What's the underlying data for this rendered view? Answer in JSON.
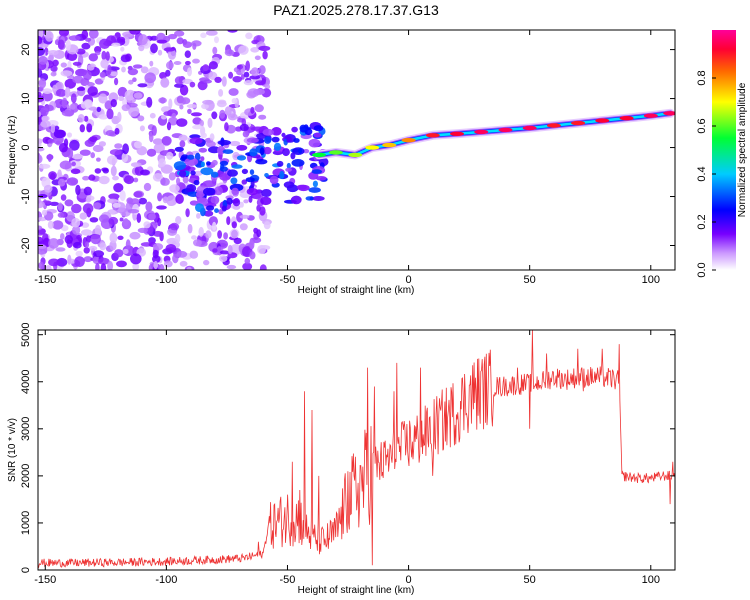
{
  "title": "PAZ1.2025.278.17.37.G13",
  "colors": {
    "snr_line": "#ee3333",
    "axis": "#000000",
    "background": "#ffffff"
  },
  "chart_data": [
    {
      "type": "heatmap",
      "name": "spectrogram",
      "xlabel": "Height of straight line (km)",
      "ylabel": "Frequency (Hz)",
      "xlim": [
        -153,
        110
      ],
      "ylim": [
        -25,
        24
      ],
      "x_ticks": [
        -150,
        -100,
        -50,
        0,
        50,
        100
      ],
      "y_ticks": [
        20,
        10,
        0,
        -10,
        -20
      ],
      "colorbar": {
        "label": "Normalized spectral amplitude",
        "range": [
          0,
          1
        ],
        "ticks": [
          0.0,
          0.2,
          0.4,
          0.6,
          0.8
        ],
        "colormap": [
          "#ffffff",
          "#cc99ff",
          "#7700ff",
          "#0000ff",
          "#00ccff",
          "#00ff33",
          "#ffff00",
          "#ff6600",
          "#ff0033",
          "#ff0099"
        ]
      },
      "ridge": [
        {
          "x": -37,
          "freq": -1.5,
          "amp": 0.55
        },
        {
          "x": -30,
          "freq": -1.0,
          "amp": 0.6
        },
        {
          "x": -22,
          "freq": -1.5,
          "amp": 0.65
        },
        {
          "x": -15,
          "freq": 0.0,
          "amp": 0.7
        },
        {
          "x": -8,
          "freq": 0.5,
          "amp": 0.75
        },
        {
          "x": 0,
          "freq": 1.5,
          "amp": 0.8
        },
        {
          "x": 10,
          "freq": 2.5,
          "amp": 0.9
        },
        {
          "x": 20,
          "freq": 2.8,
          "amp": 0.92
        },
        {
          "x": 30,
          "freq": 3.2,
          "amp": 0.95
        },
        {
          "x": 40,
          "freq": 3.6,
          "amp": 0.95
        },
        {
          "x": 50,
          "freq": 4.0,
          "amp": 0.95
        },
        {
          "x": 60,
          "freq": 4.5,
          "amp": 0.9
        },
        {
          "x": 70,
          "freq": 5.0,
          "amp": 0.9
        },
        {
          "x": 80,
          "freq": 5.5,
          "amp": 0.92
        },
        {
          "x": 90,
          "freq": 6.0,
          "amp": 0.92
        },
        {
          "x": 100,
          "freq": 6.5,
          "amp": 0.95
        },
        {
          "x": 108,
          "freq": 7.0,
          "amp": 0.95
        }
      ]
    },
    {
      "type": "line",
      "name": "snr",
      "xlabel": "Height of straight line (km)",
      "ylabel": "SNR (10 * v/v)",
      "xlim": [
        -153,
        110
      ],
      "ylim": [
        0,
        5100
      ],
      "x_ticks": [
        -150,
        -100,
        -50,
        0,
        50,
        100
      ],
      "y_ticks": [
        0,
        1000,
        2000,
        3000,
        4000,
        5000
      ],
      "series": [
        {
          "name": "SNR",
          "x": [
            -153,
            -140,
            -120,
            -100,
            -80,
            -68,
            -60,
            -58,
            -55,
            -50,
            -45,
            -40,
            -35,
            -30,
            -25,
            -20,
            -15,
            -10,
            -5,
            0,
            5,
            10,
            15,
            20,
            25,
            30,
            35,
            40,
            45,
            50,
            55,
            60,
            65,
            70,
            75,
            80,
            85,
            87,
            88,
            95,
            100,
            105,
            110
          ],
          "y": [
            150,
            150,
            160,
            180,
            220,
            250,
            350,
            900,
            1000,
            1100,
            1100,
            700,
            600,
            800,
            1500,
            1800,
            2200,
            2300,
            2500,
            2700,
            2800,
            3000,
            3200,
            3400,
            3700,
            3800,
            3900,
            3900,
            3950,
            3950,
            4000,
            4100,
            4050,
            4100,
            4100,
            4100,
            4050,
            4000,
            2000,
            1950,
            1950,
            2000,
            2000
          ]
        }
      ],
      "spikes": [
        {
          "x": -62,
          "y": 600
        },
        {
          "x": -50,
          "y": 1600
        },
        {
          "x": -48,
          "y": 2300
        },
        {
          "x": -45,
          "y": 1700
        },
        {
          "x": -43,
          "y": 3800
        },
        {
          "x": -40,
          "y": 3400
        },
        {
          "x": -37,
          "y": 2000
        },
        {
          "x": -25,
          "y": 2100
        },
        {
          "x": -17,
          "y": 4300
        },
        {
          "x": -15,
          "y": 100
        },
        {
          "x": -14,
          "y": 3900
        },
        {
          "x": -10,
          "y": 2600
        },
        {
          "x": -6,
          "y": 3800
        },
        {
          "x": -5,
          "y": 4400
        },
        {
          "x": 5,
          "y": 4300
        },
        {
          "x": 10,
          "y": 2000
        },
        {
          "x": 20,
          "y": 3200
        },
        {
          "x": 45,
          "y": 4300
        },
        {
          "x": 50,
          "y": 3000
        },
        {
          "x": 51,
          "y": 5100
        },
        {
          "x": 57,
          "y": 4600
        },
        {
          "x": 70,
          "y": 4700
        },
        {
          "x": 72,
          "y": 3800
        },
        {
          "x": 80,
          "y": 4700
        },
        {
          "x": 87,
          "y": 4800
        },
        {
          "x": 108,
          "y": 1400
        },
        {
          "x": 109,
          "y": 2300
        }
      ]
    }
  ]
}
